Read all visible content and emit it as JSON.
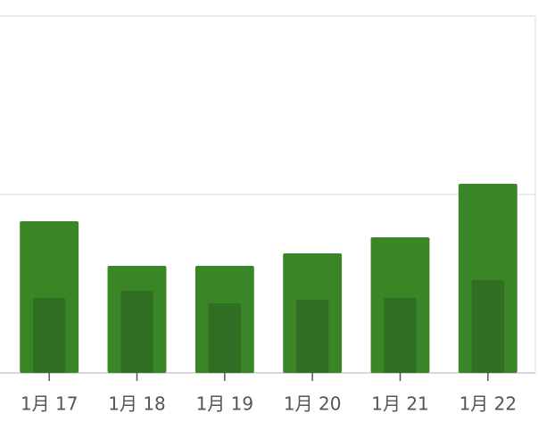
{
  "chart_data": {
    "type": "bar",
    "categories": [
      "1月 17",
      "1月 18",
      "1月 19",
      "1月 20",
      "1月 21",
      "1月 22"
    ],
    "series": [
      {
        "color": "#3a8526",
        "values": [
          170,
          120,
          120,
          134,
          152,
          212
        ]
      },
      {
        "color": "#2f6e23",
        "values": [
          84,
          92,
          78,
          82,
          84,
          104
        ]
      }
    ],
    "ylim": [
      0,
      400
    ],
    "yticks": [
      0,
      200,
      400
    ],
    "grid": true
  }
}
